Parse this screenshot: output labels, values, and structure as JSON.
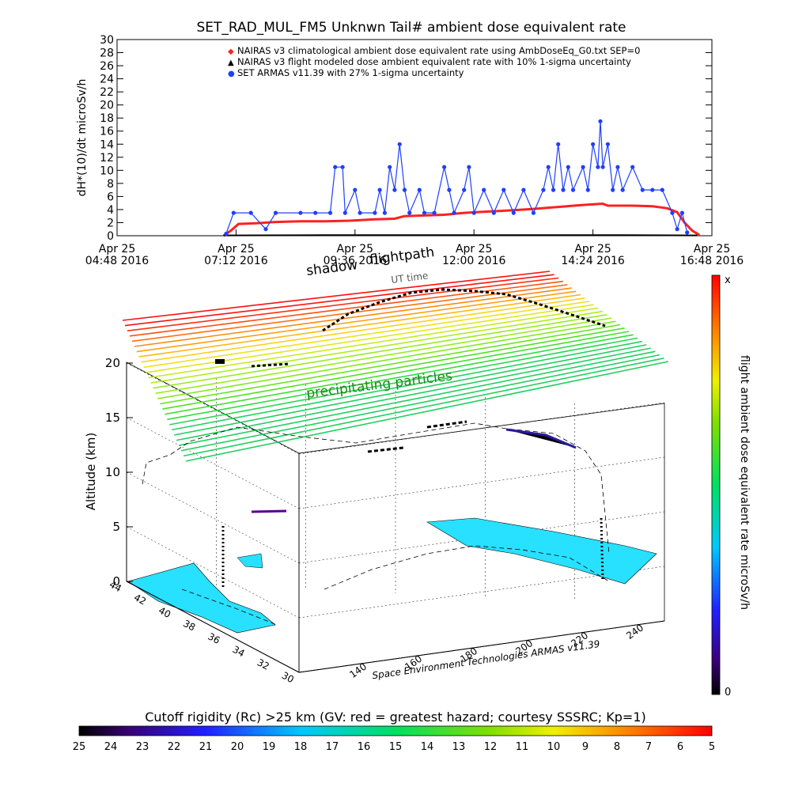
{
  "timeseries": {
    "title": "SET_RAD_MUL_FM5 Unknwn Tail#  ambient dose equivalent rate",
    "ylabel": "dH*(10)/dt microSv/h",
    "ylim": [
      0,
      30
    ],
    "yticks": [
      "0",
      "2",
      "4",
      "6",
      "8",
      "10",
      "12",
      "14",
      "16",
      "18",
      "20",
      "22",
      "24",
      "26",
      "28",
      "30"
    ],
    "xticks": [
      {
        "l1": "Apr 25",
        "l2": "04:48 2016"
      },
      {
        "l1": "Apr 25",
        "l2": "07:12 2016"
      },
      {
        "l1": "Apr 25",
        "l2": "09:36 2016"
      },
      {
        "l1": "Apr 25",
        "l2": "12:00 2016"
      },
      {
        "l1": "Apr 25",
        "l2": "14:24 2016"
      },
      {
        "l1": "Apr 25",
        "l2": "16:48 2016"
      }
    ],
    "legend": [
      {
        "symbol": "◆",
        "color": "#ff2020",
        "text": "NAIRAS v3 climatological ambient dose equivalent rate using AmbDoseEq_G0.txt SEP=0"
      },
      {
        "symbol": "▲",
        "color": "#000000",
        "text": "NAIRAS v3 flight modeled dose ambient equivalent rate with 10% 1-sigma uncertainty"
      },
      {
        "symbol": "●",
        "color": "#1f3fff",
        "text": "SET ARMAS v11.39 with 27% 1-sigma uncertainty"
      }
    ]
  },
  "chart_data": {
    "type": "line",
    "title": "SET_RAD_MUL_FM5 Unknwn Tail#  ambient dose equivalent rate",
    "ylabel": "dH*(10)/dt microSv/h",
    "ylim": [
      0,
      30
    ],
    "x_unit": "UT time (hours of Apr 25 2016)",
    "xlim": [
      4.8,
      16.8
    ],
    "series": [
      {
        "name": "NAIRAS v3 climatological ambient dose equivalent rate using AmbDoseEq_G0.txt SEP=0",
        "color": "#ff2020",
        "points": [
          [
            6.95,
            0.0
          ],
          [
            7.1,
            0.8
          ],
          [
            7.25,
            1.8
          ],
          [
            7.6,
            1.9
          ],
          [
            8.0,
            2.1
          ],
          [
            8.5,
            2.2
          ],
          [
            9.0,
            2.2
          ],
          [
            9.5,
            2.3
          ],
          [
            10.0,
            2.5
          ],
          [
            10.4,
            2.6
          ],
          [
            10.6,
            3.0
          ],
          [
            11.0,
            3.1
          ],
          [
            11.4,
            3.2
          ],
          [
            11.8,
            3.5
          ],
          [
            12.3,
            3.7
          ],
          [
            12.8,
            3.9
          ],
          [
            13.2,
            4.1
          ],
          [
            13.7,
            4.4
          ],
          [
            14.2,
            4.7
          ],
          [
            14.6,
            4.9
          ],
          [
            14.7,
            4.6
          ],
          [
            15.2,
            4.6
          ],
          [
            15.6,
            4.5
          ],
          [
            15.9,
            4.2
          ],
          [
            16.1,
            3.6
          ],
          [
            16.25,
            2.0
          ],
          [
            16.4,
            0.8
          ],
          [
            16.55,
            0.1
          ]
        ]
      },
      {
        "name": "NAIRAS v3 flight modeled dose ambient equivalent rate with 10% 1-sigma uncertainty",
        "color": "#000000",
        "points": [
          [
            6.95,
            0.05
          ],
          [
            9.0,
            0.08
          ],
          [
            11.0,
            0.1
          ],
          [
            13.0,
            0.1
          ],
          [
            15.0,
            0.1
          ],
          [
            16.5,
            0.05
          ]
        ]
      },
      {
        "name": "SET ARMAS v11.39 with 27% 1-sigma uncertainty",
        "color": "#1f3fff",
        "points": [
          [
            7.0,
            0.3
          ],
          [
            7.15,
            3.5
          ],
          [
            7.5,
            3.5
          ],
          [
            7.8,
            1.0
          ],
          [
            8.0,
            3.5
          ],
          [
            8.5,
            3.5
          ],
          [
            8.8,
            3.5
          ],
          [
            9.1,
            3.5
          ],
          [
            9.2,
            10.5
          ],
          [
            9.35,
            10.5
          ],
          [
            9.4,
            3.5
          ],
          [
            9.6,
            7.0
          ],
          [
            9.7,
            3.5
          ],
          [
            10.0,
            3.5
          ],
          [
            10.1,
            7.0
          ],
          [
            10.2,
            3.5
          ],
          [
            10.3,
            10.5
          ],
          [
            10.4,
            7.0
          ],
          [
            10.5,
            14.0
          ],
          [
            10.6,
            7.0
          ],
          [
            10.7,
            3.5
          ],
          [
            10.9,
            7.0
          ],
          [
            11.0,
            3.5
          ],
          [
            11.2,
            3.5
          ],
          [
            11.4,
            10.5
          ],
          [
            11.5,
            7.0
          ],
          [
            11.6,
            3.5
          ],
          [
            11.8,
            7.0
          ],
          [
            11.9,
            10.5
          ],
          [
            12.0,
            3.5
          ],
          [
            12.2,
            7.0
          ],
          [
            12.4,
            3.5
          ],
          [
            12.6,
            7.0
          ],
          [
            12.8,
            3.5
          ],
          [
            13.0,
            7.0
          ],
          [
            13.2,
            3.5
          ],
          [
            13.4,
            7.0
          ],
          [
            13.5,
            10.5
          ],
          [
            13.6,
            7.0
          ],
          [
            13.7,
            14.0
          ],
          [
            13.8,
            7.0
          ],
          [
            13.9,
            10.5
          ],
          [
            14.0,
            7.0
          ],
          [
            14.2,
            10.5
          ],
          [
            14.3,
            7.0
          ],
          [
            14.4,
            14.0
          ],
          [
            14.5,
            10.5
          ],
          [
            14.55,
            17.5
          ],
          [
            14.6,
            10.5
          ],
          [
            14.7,
            14.0
          ],
          [
            14.8,
            7.0
          ],
          [
            14.9,
            10.5
          ],
          [
            15.0,
            7.0
          ],
          [
            15.2,
            10.5
          ],
          [
            15.4,
            7.0
          ],
          [
            15.6,
            7.0
          ],
          [
            15.8,
            7.0
          ],
          [
            16.0,
            3.5
          ],
          [
            16.1,
            1.0
          ],
          [
            16.2,
            3.5
          ],
          [
            16.3,
            0.5
          ]
        ]
      }
    ]
  },
  "globe": {
    "text_shadow": "shadow",
    "text_flightpath": "flightpath",
    "text_ut": "UT time",
    "text_particles": "precipitating particles",
    "zlabel": "Altitude (km)",
    "zticks": [
      "0",
      "5",
      "10",
      "15",
      "20"
    ],
    "lat_ticks": [
      "44",
      "42",
      "40",
      "38",
      "36",
      "34",
      "32",
      "30"
    ],
    "lon_ticks": [
      "140",
      "160",
      "180",
      "200",
      "220",
      "240"
    ],
    "caption": "Space Environment Technologies ARMAS v11.39"
  },
  "colorbar_right": {
    "label": "flight ambient dose equivalent rate microSv/h",
    "top_label": "x",
    "bottom_label": "0"
  },
  "colorbar_bottom": {
    "title": "Cutoff rigidity (Rc) >25 km (GV: red = greatest hazard; courtesy SSSRC; Kp=1)",
    "ticks": [
      "25",
      "24",
      "23",
      "22",
      "21",
      "20",
      "19",
      "18",
      "17",
      "16",
      "15",
      "14",
      "13",
      "12",
      "11",
      "10",
      "9",
      "8",
      "7",
      "6",
      "5"
    ]
  },
  "colors": {
    "dose_red": "#ff2020",
    "armas_blue": "#1f3fff",
    "ocean_cyan": "#28e0ff",
    "flightpath": "#000000"
  }
}
